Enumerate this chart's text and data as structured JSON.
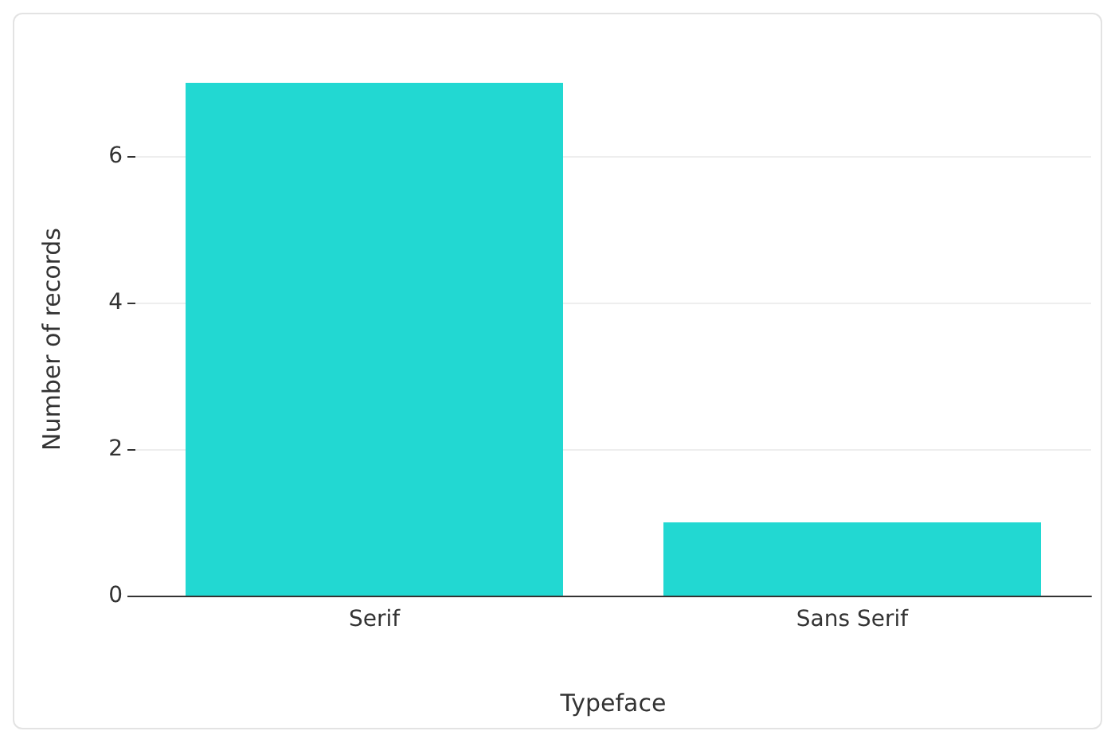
{
  "chart_data": {
    "type": "bar",
    "xlabel": "Typeface",
    "ylabel": "Number of records",
    "categories": [
      "Serif",
      "Sans Serif"
    ],
    "values": [
      7,
      1
    ],
    "color": "#22d8d2",
    "ylim": [
      0,
      7
    ],
    "yticks": [
      0,
      2,
      4,
      6
    ],
    "grid": "y"
  }
}
